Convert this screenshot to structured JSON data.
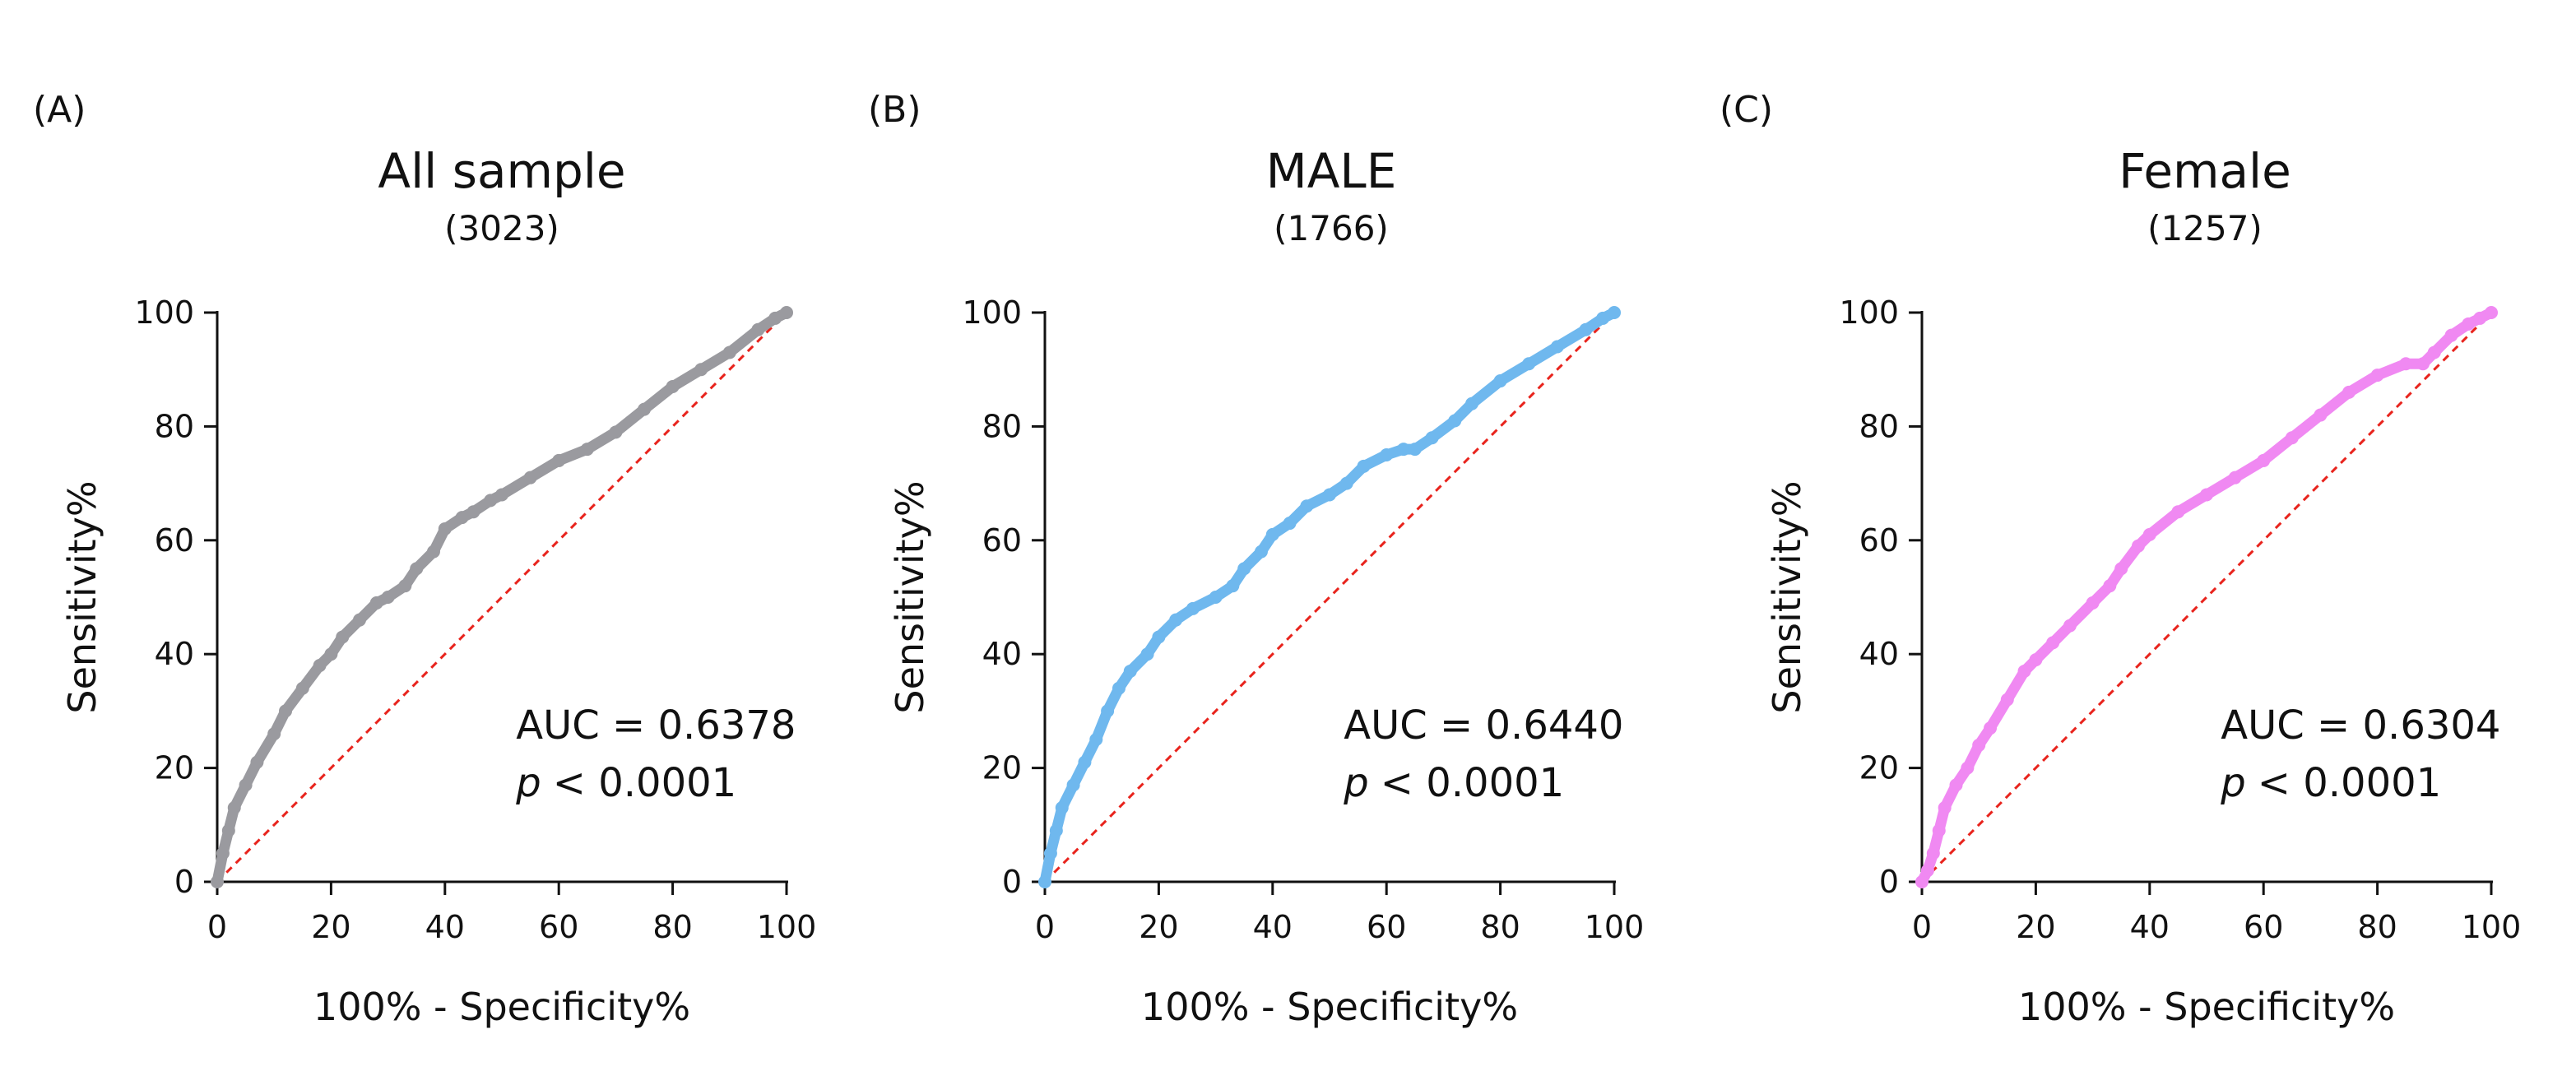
{
  "chart_data": [
    {
      "type": "line",
      "panel_label": "(A)",
      "title": "All sample",
      "subtitle": "(3023)",
      "xlabel": "100% - Specificity%",
      "ylabel": "Sensitivity%",
      "xlim": [
        0,
        100
      ],
      "ylim": [
        0,
        100
      ],
      "xticks": [
        "0",
        "20",
        "40",
        "60",
        "80",
        "100"
      ],
      "yticks": [
        "0",
        "20",
        "40",
        "60",
        "80",
        "100"
      ],
      "color": "#9a9a9f",
      "reference_color": "#e8231c",
      "auc_text": "AUC = 0.6378",
      "p_symbol": "p",
      "p_text": "< 0.0001",
      "x": [
        0,
        1,
        2,
        3,
        5,
        7,
        10,
        12,
        15,
        18,
        20,
        22,
        25,
        28,
        30,
        33,
        35,
        38,
        40,
        43,
        45,
        48,
        50,
        55,
        60,
        65,
        70,
        75,
        80,
        85,
        90,
        95,
        98,
        100
      ],
      "y": [
        0,
        5,
        9,
        13,
        17,
        21,
        26,
        30,
        34,
        38,
        40,
        43,
        46,
        49,
        50,
        52,
        55,
        58,
        62,
        64,
        65,
        67,
        68,
        71,
        74,
        76,
        79,
        83,
        87,
        90,
        93,
        97,
        99,
        100
      ]
    },
    {
      "type": "line",
      "panel_label": "(B)",
      "title": "MALE",
      "subtitle": "(1766)",
      "xlabel": "100% - Specificity%",
      "ylabel": "Sensitivity%",
      "xlim": [
        0,
        100
      ],
      "ylim": [
        0,
        100
      ],
      "xticks": [
        "0",
        "20",
        "40",
        "60",
        "80",
        "100"
      ],
      "yticks": [
        "0",
        "20",
        "40",
        "60",
        "80",
        "100"
      ],
      "color": "#6fb8ee",
      "reference_color": "#e8231c",
      "auc_text": "AUC = 0.6440",
      "p_symbol": "p",
      "p_text": "< 0.0001",
      "x": [
        0,
        1,
        2,
        3,
        5,
        7,
        9,
        11,
        13,
        15,
        18,
        20,
        23,
        26,
        30,
        33,
        35,
        38,
        40,
        43,
        46,
        50,
        53,
        56,
        60,
        63,
        65,
        68,
        72,
        75,
        80,
        85,
        90,
        95,
        98,
        100
      ],
      "y": [
        0,
        5,
        9,
        13,
        17,
        21,
        25,
        30,
        34,
        37,
        40,
        43,
        46,
        48,
        50,
        52,
        55,
        58,
        61,
        63,
        66,
        68,
        70,
        73,
        75,
        76,
        76,
        78,
        81,
        84,
        88,
        91,
        94,
        97,
        99,
        100
      ]
    },
    {
      "type": "line",
      "panel_label": "(C)",
      "title": "Female",
      "subtitle": "(1257)",
      "xlabel": "100% - Specificity%",
      "ylabel": "Sensitivity%",
      "xlim": [
        0,
        100
      ],
      "ylim": [
        0,
        100
      ],
      "xticks": [
        "0",
        "20",
        "40",
        "60",
        "80",
        "100"
      ],
      "yticks": [
        "0",
        "20",
        "40",
        "60",
        "80",
        "100"
      ],
      "color": "#f089f2",
      "reference_color": "#e8231c",
      "auc_text": "AUC = 0.6304",
      "p_symbol": "p",
      "p_text": "< 0.0001",
      "x": [
        0,
        1,
        2,
        3,
        4,
        6,
        8,
        10,
        12,
        15,
        18,
        20,
        23,
        26,
        30,
        33,
        35,
        38,
        40,
        45,
        50,
        55,
        60,
        65,
        70,
        75,
        80,
        85,
        88,
        90,
        93,
        96,
        98,
        100
      ],
      "y": [
        0,
        2,
        5,
        9,
        13,
        17,
        20,
        24,
        27,
        32,
        37,
        39,
        42,
        45,
        49,
        52,
        55,
        59,
        61,
        65,
        68,
        71,
        74,
        78,
        82,
        86,
        89,
        91,
        91,
        93,
        96,
        98,
        99,
        100
      ]
    }
  ]
}
